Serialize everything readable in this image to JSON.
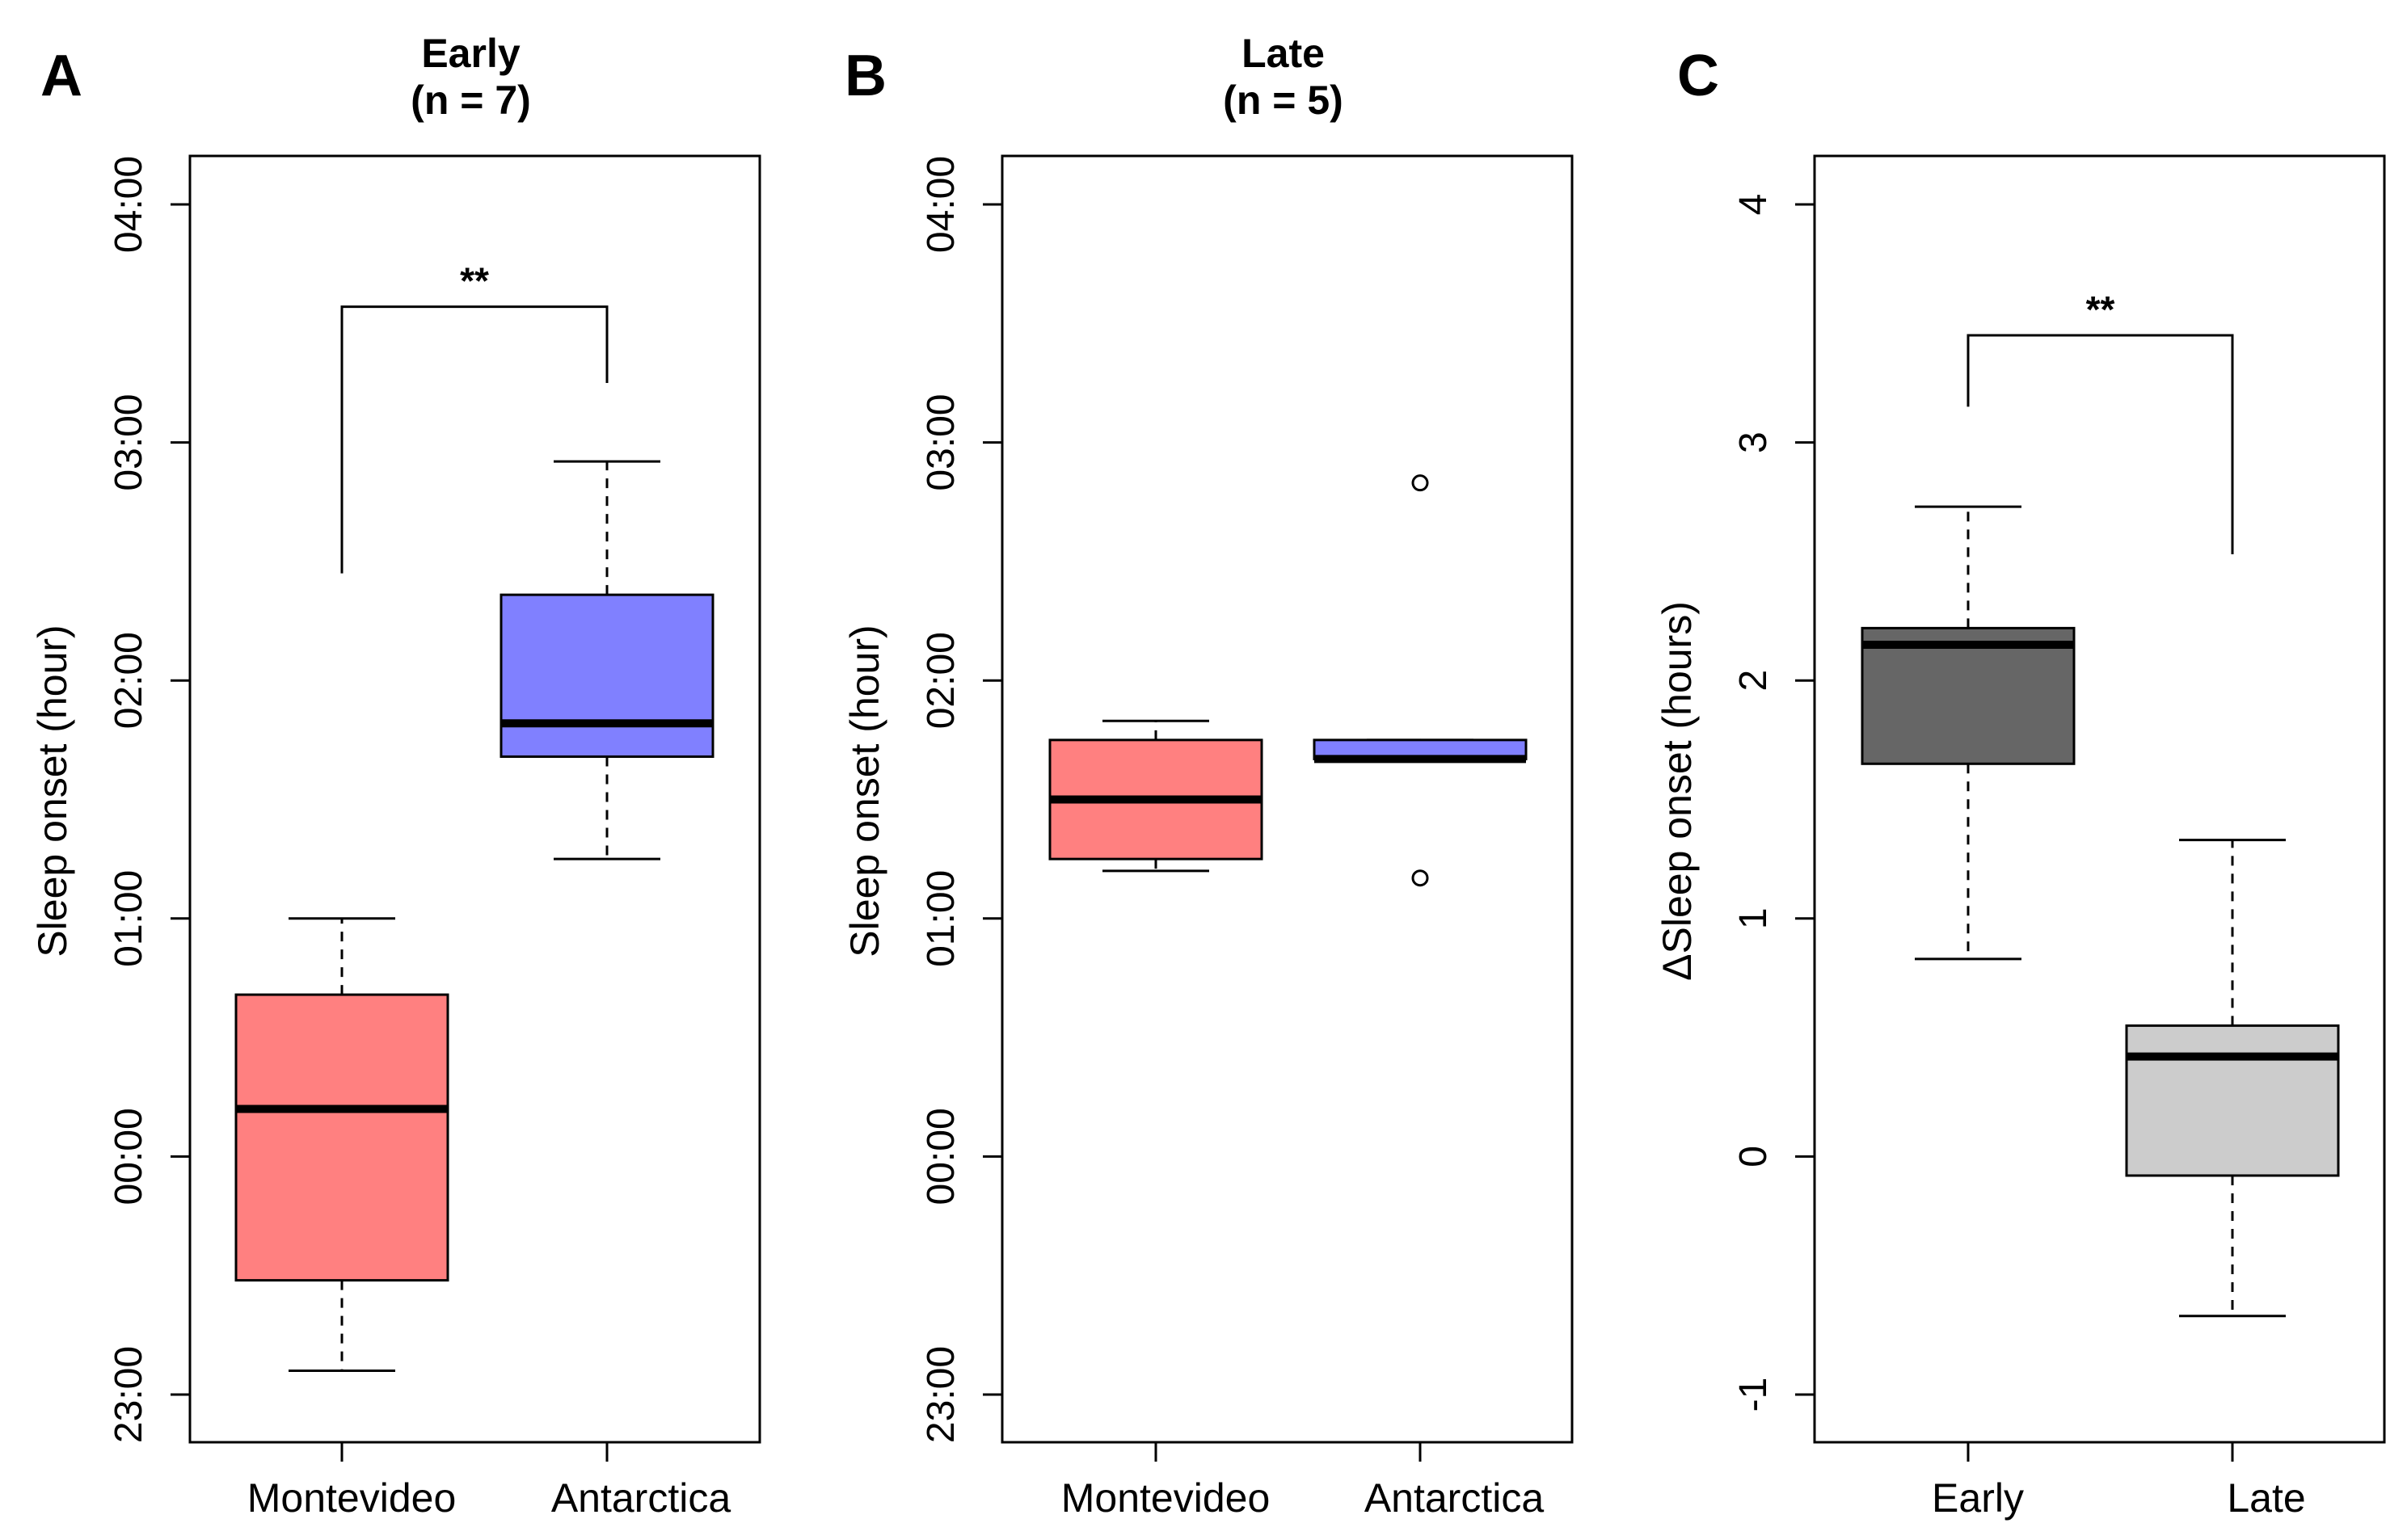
{
  "chart_data": [
    {
      "type": "boxplot",
      "panel": "A",
      "title": "Early",
      "subtitle": "(n = 7)",
      "xlabel": "",
      "ylabel": "Sleep onset (hour)",
      "ylim": [
        -1.2,
        4.2
      ],
      "yticks": [
        -1,
        0,
        1,
        2,
        3,
        4
      ],
      "ytick_labels": [
        "23:00",
        "00:00",
        "01:00",
        "02:00",
        "03:00",
        "04:00"
      ],
      "categories": [
        "Montevideo",
        "Antarctica"
      ],
      "boxes": [
        {
          "name": "Montevideo",
          "whisker_low": -0.9,
          "q1": -0.52,
          "median": 0.2,
          "q3": 0.68,
          "whisker_high": 1.0,
          "outliers": [],
          "fill": "#ff8080"
        },
        {
          "name": "Antarctica",
          "whisker_low": 1.25,
          "q1": 1.68,
          "median": 1.82,
          "q3": 2.36,
          "whisker_high": 2.92,
          "outliers": [],
          "fill": "#8080ff"
        }
      ],
      "significance": {
        "label": "**",
        "from": 0,
        "to": 1,
        "y": 3.57,
        "left_end": 2.45,
        "right_end": 3.25
      }
    },
    {
      "type": "boxplot",
      "panel": "B",
      "title": "Late",
      "subtitle": "(n = 5)",
      "xlabel": "",
      "ylabel": "Sleep onset (hour)",
      "ylim": [
        -1.2,
        4.2
      ],
      "yticks": [
        -1,
        0,
        1,
        2,
        3,
        4
      ],
      "ytick_labels": [
        "23:00",
        "00:00",
        "01:00",
        "02:00",
        "03:00",
        "04:00"
      ],
      "categories": [
        "Montevideo",
        "Antarctica"
      ],
      "boxes": [
        {
          "name": "Montevideo",
          "whisker_low": 1.2,
          "q1": 1.25,
          "median": 1.5,
          "q3": 1.75,
          "whisker_high": 1.83,
          "outliers": [],
          "fill": "#ff8080"
        },
        {
          "name": "Antarctica",
          "whisker_low": 1.67,
          "q1": 1.67,
          "median": 1.67,
          "q3": 1.75,
          "whisker_high": 1.75,
          "outliers": [
            1.17,
            2.83
          ],
          "fill": "#8080ff"
        }
      ]
    },
    {
      "type": "boxplot",
      "panel": "C",
      "title": "",
      "subtitle": "",
      "xlabel": "",
      "ylabel": "ΔSleep onset (hours)",
      "ylim": [
        -1.2,
        4.2
      ],
      "yticks": [
        -1,
        0,
        1,
        2,
        3,
        4
      ],
      "ytick_labels": [
        "-1",
        "0",
        "1",
        "2",
        "3",
        "4"
      ],
      "categories": [
        "Early",
        "Late"
      ],
      "boxes": [
        {
          "name": "Early",
          "whisker_low": 0.83,
          "q1": 1.65,
          "median": 2.15,
          "q3": 2.22,
          "whisker_high": 2.73,
          "outliers": [],
          "fill": "#666666"
        },
        {
          "name": "Late",
          "whisker_low": -0.67,
          "q1": -0.08,
          "median": 0.42,
          "q3": 0.55,
          "whisker_high": 1.33,
          "outliers": [],
          "fill": "#cccccc"
        }
      ],
      "significance": {
        "label": "**",
        "from": 0,
        "to": 1,
        "y": 3.45,
        "left_end": 3.15,
        "right_end": 2.53
      }
    }
  ]
}
